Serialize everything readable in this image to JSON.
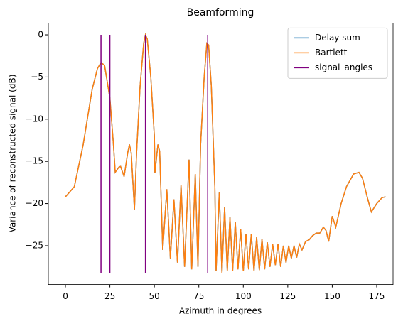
{
  "chart_data": {
    "type": "line",
    "title": "Beamforming",
    "xlabel": "Azimuth in degrees",
    "ylabel": "Variance of reconstructed signal (dB)",
    "x": [
      0,
      5,
      10,
      15,
      18,
      20,
      22,
      25,
      27,
      28,
      30,
      31,
      33,
      35,
      36,
      37,
      38.8,
      40,
      42,
      44,
      45,
      46,
      48,
      50,
      50.3,
      52,
      53,
      54.7,
      57,
      59,
      61,
      63,
      65,
      67,
      69.5,
      71,
      73,
      74.5,
      76,
      78,
      79.5,
      80.5,
      82,
      84,
      84.7,
      86.5,
      88,
      89.5,
      91,
      92.5,
      94,
      95.5,
      97,
      98.5,
      100,
      101.5,
      103,
      104.5,
      106,
      107.5,
      109,
      110.5,
      112,
      113.5,
      115,
      116.5,
      118,
      119.5,
      121,
      122.5,
      124,
      125.5,
      127,
      128.5,
      130,
      131.5,
      133,
      135,
      137,
      139,
      141,
      143,
      145,
      146.5,
      148,
      150,
      152,
      155,
      158,
      162,
      165,
      167,
      170,
      172,
      175,
      178,
      180
    ],
    "series": [
      {
        "name": "Delay sum",
        "color": "#1f77b4",
        "values": [
          -19.2,
          -18,
          -13,
          -6.5,
          -4,
          -3.3,
          -3.6,
          -7.5,
          -13,
          -16.3,
          -15.7,
          -15.6,
          -16.8,
          -14,
          -13,
          -14,
          -20.7,
          -14,
          -6,
          -1,
          0,
          -0.5,
          -5,
          -12,
          -16.4,
          -13,
          -13.8,
          -25.5,
          -18.3,
          -26.5,
          -19.5,
          -27,
          -17.8,
          -27.5,
          -14.8,
          -27.8,
          -16.5,
          -27.5,
          -13,
          -5,
          -1,
          -1.2,
          -6,
          -18,
          -28,
          -18.7,
          -28.2,
          -20.4,
          -28,
          -21.6,
          -28,
          -22.2,
          -27.8,
          -23,
          -28,
          -23.6,
          -27.8,
          -23.6,
          -28,
          -24,
          -27.9,
          -24.2,
          -27.8,
          -24.6,
          -27.5,
          -24.8,
          -27.3,
          -24.8,
          -27.5,
          -25,
          -27,
          -25,
          -26.5,
          -25,
          -26.4,
          -24.8,
          -25.5,
          -24.5,
          -24.3,
          -23.8,
          -23.5,
          -23.5,
          -22.8,
          -23.2,
          -24.5,
          -21.5,
          -22.8,
          -20,
          -18,
          -16.5,
          -16.3,
          -17,
          -19.5,
          -21,
          -20,
          -19.3,
          -19.2
        ]
      },
      {
        "name": "Bartlett",
        "color": "#ff7f0e",
        "values": [
          -19.2,
          -18,
          -13,
          -6.5,
          -4,
          -3.3,
          -3.6,
          -7.5,
          -13,
          -16.3,
          -15.7,
          -15.6,
          -16.8,
          -14,
          -13,
          -14,
          -20.7,
          -14,
          -6,
          -1,
          0,
          -0.5,
          -5,
          -12,
          -16.4,
          -13,
          -13.8,
          -25.5,
          -18.3,
          -26.5,
          -19.5,
          -27,
          -17.8,
          -27.5,
          -14.8,
          -27.8,
          -16.5,
          -27.5,
          -13,
          -5,
          -1,
          -1.2,
          -6,
          -18,
          -28,
          -18.7,
          -28.2,
          -20.4,
          -28,
          -21.6,
          -28,
          -22.2,
          -27.8,
          -23,
          -28,
          -23.6,
          -27.8,
          -23.6,
          -28,
          -24,
          -27.9,
          -24.2,
          -27.8,
          -24.6,
          -27.5,
          -24.8,
          -27.3,
          -24.8,
          -27.5,
          -25,
          -27,
          -25,
          -26.5,
          -25,
          -26.4,
          -24.8,
          -25.5,
          -24.5,
          -24.3,
          -23.8,
          -23.5,
          -23.5,
          -22.8,
          -23.2,
          -24.5,
          -21.5,
          -22.8,
          -20,
          -18,
          -16.5,
          -16.3,
          -17,
          -19.5,
          -21,
          -20,
          -19.3,
          -19.2
        ]
      }
    ],
    "vlines": {
      "name": "signal_angles",
      "color": "#800080",
      "x": [
        20,
        25,
        45,
        80
      ],
      "ymin": -28.2,
      "ymax": 0
    },
    "xlim": [
      -9.6,
      184.2
    ],
    "ylim": [
      -29.6,
      1.4
    ],
    "xticks": [
      0,
      25,
      50,
      75,
      100,
      125,
      150,
      175
    ],
    "yticks": [
      {
        "value": -25,
        "label": "−25"
      },
      {
        "value": -20,
        "label": "−20"
      },
      {
        "value": -15,
        "label": "−15"
      },
      {
        "value": -10,
        "label": "−10"
      },
      {
        "value": -5,
        "label": "−5"
      },
      0
    ],
    "legend": "upper right",
    "grid": false
  }
}
